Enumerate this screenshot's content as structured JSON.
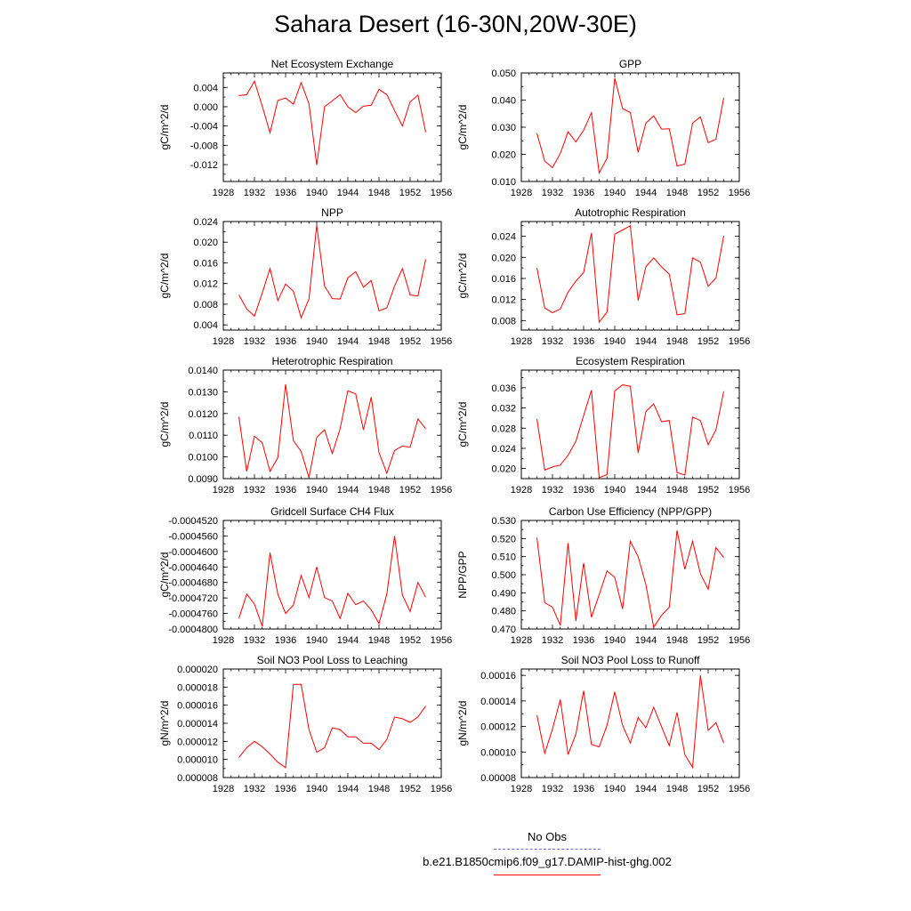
{
  "title": "Sahara Desert (16-30N,20W-30E)",
  "colors": {
    "series": "#ff0000",
    "obs": "#6a6adf",
    "axis": "#000000"
  },
  "legend": {
    "obs_label": "No Obs",
    "model_label": "b.e21.B1850cmip6.f09_g17.DAMIP-hist-ghg.002"
  },
  "chart_data": [
    {
      "type": "line",
      "title": "Net Ecosystem Exchange",
      "xlabel": "",
      "ylabel": "gC/m^2/d",
      "xlim": [
        1928,
        1956
      ],
      "ylim": [
        -0.0155,
        0.007
      ],
      "xticks": [
        "1928",
        "1932",
        "1936",
        "1940",
        "1944",
        "1948",
        "1952",
        "1956"
      ],
      "yticks": [
        "0.004",
        "0.000",
        "-0.004",
        "-0.008",
        "-0.012"
      ],
      "x": [
        1930,
        1931,
        1932,
        1933,
        1934,
        1935,
        1936,
        1937,
        1938,
        1939,
        1940,
        1941,
        1942,
        1943,
        1944,
        1945,
        1946,
        1947,
        1948,
        1949,
        1950,
        1951,
        1952,
        1953,
        1954
      ],
      "values": [
        0.0023,
        0.0025,
        0.0053,
        0.0001,
        -0.0054,
        0.0013,
        0.0018,
        0.0005,
        0.005,
        0.0006,
        -0.0121,
        0.0,
        0.0012,
        0.0025,
        0.0,
        -0.0012,
        0.0001,
        0.0003,
        0.0036,
        0.0025,
        -0.0008,
        -0.004,
        0.001,
        0.0024,
        -0.0053
      ]
    },
    {
      "type": "line",
      "title": "GPP",
      "xlabel": "",
      "ylabel": "gC/m^2/d",
      "xlim": [
        1928,
        1956
      ],
      "ylim": [
        0.01,
        0.05
      ],
      "xticks": [
        "1928",
        "1932",
        "1936",
        "1940",
        "1944",
        "1948",
        "1952",
        "1956"
      ],
      "yticks": [
        "0.050",
        "0.040",
        "0.030",
        "0.020",
        "0.010"
      ],
      "x": [
        1930,
        1931,
        1932,
        1933,
        1934,
        1935,
        1936,
        1937,
        1938,
        1939,
        1940,
        1941,
        1942,
        1943,
        1944,
        1945,
        1946,
        1947,
        1948,
        1949,
        1950,
        1951,
        1952,
        1953,
        1954
      ],
      "values": [
        0.0278,
        0.0175,
        0.0151,
        0.0203,
        0.0283,
        0.0246,
        0.0289,
        0.0353,
        0.0131,
        0.0186,
        0.0481,
        0.0369,
        0.0354,
        0.0207,
        0.0315,
        0.0342,
        0.0293,
        0.0294,
        0.0157,
        0.0164,
        0.0315,
        0.0338,
        0.0243,
        0.0256,
        0.0409
      ]
    },
    {
      "type": "line",
      "title": "NPP",
      "xlabel": "",
      "ylabel": "gC/m^2/d",
      "xlim": [
        1928,
        1956
      ],
      "ylim": [
        0.003,
        0.024
      ],
      "xticks": [
        "1928",
        "1932",
        "1936",
        "1940",
        "1944",
        "1948",
        "1952",
        "1956"
      ],
      "yticks": [
        "0.024",
        "0.020",
        "0.016",
        "0.012",
        "0.008",
        "0.004"
      ],
      "x": [
        1930,
        1931,
        1932,
        1933,
        1934,
        1935,
        1936,
        1937,
        1938,
        1939,
        1940,
        1941,
        1942,
        1943,
        1944,
        1945,
        1946,
        1947,
        1948,
        1949,
        1950,
        1951,
        1952,
        1953,
        1954
      ],
      "values": [
        0.0098,
        0.0071,
        0.0057,
        0.0102,
        0.0149,
        0.0087,
        0.0119,
        0.0105,
        0.0054,
        0.009,
        0.0233,
        0.0115,
        0.0091,
        0.009,
        0.0131,
        0.0143,
        0.0113,
        0.0126,
        0.0067,
        0.0073,
        0.0115,
        0.0149,
        0.0098,
        0.0096,
        0.0167
      ]
    },
    {
      "type": "line",
      "title": "Autotrophic Respiration",
      "xlabel": "",
      "ylabel": "gC/m^2/d",
      "xlim": [
        1928,
        1956
      ],
      "ylim": [
        0.0062,
        0.0268
      ],
      "xticks": [
        "1928",
        "1932",
        "1936",
        "1940",
        "1944",
        "1948",
        "1952",
        "1956"
      ],
      "yticks": [
        "0.024",
        "0.020",
        "0.016",
        "0.012",
        "0.008"
      ],
      "x": [
        1930,
        1931,
        1932,
        1933,
        1934,
        1935,
        1936,
        1937,
        1938,
        1939,
        1940,
        1941,
        1942,
        1943,
        1944,
        1945,
        1946,
        1947,
        1948,
        1949,
        1950,
        1951,
        1952,
        1953,
        1954
      ],
      "values": [
        0.018,
        0.0104,
        0.0095,
        0.0102,
        0.0134,
        0.0155,
        0.0171,
        0.0246,
        0.0077,
        0.0096,
        0.0244,
        0.0252,
        0.026,
        0.0118,
        0.0182,
        0.0199,
        0.0182,
        0.0168,
        0.0091,
        0.0093,
        0.0199,
        0.0191,
        0.0145,
        0.0161,
        0.0241
      ]
    },
    {
      "type": "line",
      "title": "Heterotrophic Respiration",
      "xlabel": "",
      "ylabel": "gC/m^2/d",
      "xlim": [
        1928,
        1956
      ],
      "ylim": [
        0.009,
        0.014
      ],
      "xticks": [
        "1928",
        "1932",
        "1936",
        "1940",
        "1944",
        "1948",
        "1952",
        "1956"
      ],
      "yticks": [
        "0.0140",
        "0.0130",
        "0.0120",
        "0.0110",
        "0.0100",
        "0.0090"
      ],
      "x": [
        1930,
        1931,
        1932,
        1933,
        1934,
        1935,
        1936,
        1937,
        1938,
        1939,
        1940,
        1941,
        1942,
        1943,
        1944,
        1945,
        1946,
        1947,
        1948,
        1949,
        1950,
        1951,
        1952,
        1953,
        1954
      ],
      "values": [
        0.01185,
        0.00932,
        0.01095,
        0.01065,
        0.00933,
        0.00997,
        0.01335,
        0.01075,
        0.01025,
        0.00905,
        0.0109,
        0.01125,
        0.01015,
        0.0113,
        0.01305,
        0.0129,
        0.01125,
        0.01275,
        0.0102,
        0.00925,
        0.0103,
        0.0105,
        0.01045,
        0.01175,
        0.0113
      ]
    },
    {
      "type": "line",
      "title": "Ecosystem Respiration",
      "xlabel": "",
      "ylabel": "gC/m^2/d",
      "xlim": [
        1928,
        1956
      ],
      "ylim": [
        0.018,
        0.0395
      ],
      "xticks": [
        "1928",
        "1932",
        "1936",
        "1940",
        "1944",
        "1948",
        "1952",
        "1956"
      ],
      "yticks": [
        "0.036",
        "0.032",
        "0.028",
        "0.024",
        "0.020"
      ],
      "x": [
        1930,
        1931,
        1932,
        1933,
        1934,
        1935,
        1936,
        1937,
        1938,
        1939,
        1940,
        1941,
        1942,
        1943,
        1944,
        1945,
        1946,
        1947,
        1948,
        1949,
        1950,
        1951,
        1952,
        1953,
        1954
      ],
      "values": [
        0.0298,
        0.0197,
        0.0203,
        0.0207,
        0.0226,
        0.0254,
        0.0305,
        0.0355,
        0.0182,
        0.0188,
        0.0354,
        0.0366,
        0.0363,
        0.0231,
        0.0313,
        0.0328,
        0.0293,
        0.0295,
        0.0192,
        0.0187,
        0.0302,
        0.0295,
        0.0247,
        0.0277,
        0.0353
      ]
    },
    {
      "type": "line",
      "title": "Gridcell Surface CH4 Flux",
      "xlabel": "",
      "ylabel": "gC/m^2/d",
      "xlim": [
        1928,
        1956
      ],
      "ylim": [
        -0.00048,
        -0.000452
      ],
      "xticks": [
        "1928",
        "1932",
        "1936",
        "1940",
        "1944",
        "1948",
        "1952",
        "1956"
      ],
      "yticks": [
        "-0.0004520",
        "-0.0004560",
        "-0.0004600",
        "-0.0004640",
        "-0.0004680",
        "-0.0004720",
        "-0.0004760",
        "-0.0004800"
      ],
      "x": [
        1930,
        1931,
        1932,
        1933,
        1934,
        1935,
        1936,
        1937,
        1938,
        1939,
        1940,
        1941,
        1942,
        1943,
        1944,
        1945,
        1946,
        1947,
        1948,
        1949,
        1950,
        1951,
        1952,
        1953,
        1954
      ],
      "values": [
        -0.0004773,
        -0.000471,
        -0.0004736,
        -0.0004793,
        -0.0004603,
        -0.000471,
        -0.000476,
        -0.0004738,
        -0.0004662,
        -0.0004719,
        -0.000464,
        -0.0004719,
        -0.0004728,
        -0.0004773,
        -0.0004708,
        -0.0004737,
        -0.0004728,
        -0.0004751,
        -0.0004786,
        -0.000471,
        -0.000456,
        -0.0004712,
        -0.0004755,
        -0.000468,
        -0.0004718
      ]
    },
    {
      "type": "line",
      "title": "Carbon Use Efficiency (NPP/GPP)",
      "xlabel": "",
      "ylabel": "NPP/GPP",
      "xlim": [
        1928,
        1956
      ],
      "ylim": [
        0.47,
        0.53
      ],
      "xticks": [
        "1928",
        "1932",
        "1936",
        "1940",
        "1944",
        "1948",
        "1952",
        "1956"
      ],
      "yticks": [
        "0.530",
        "0.520",
        "0.510",
        "0.500",
        "0.490",
        "0.480",
        "0.470"
      ],
      "x": [
        1930,
        1931,
        1932,
        1933,
        1934,
        1935,
        1936,
        1937,
        1938,
        1939,
        1940,
        1941,
        1942,
        1943,
        1944,
        1945,
        1946,
        1947,
        1948,
        1949,
        1950,
        1951,
        1952,
        1953,
        1954
      ],
      "values": [
        0.5205,
        0.4845,
        0.482,
        0.472,
        0.5175,
        0.4745,
        0.5065,
        0.4765,
        0.489,
        0.502,
        0.4985,
        0.481,
        0.5185,
        0.51,
        0.4945,
        0.471,
        0.4775,
        0.482,
        0.5245,
        0.503,
        0.5185,
        0.5005,
        0.492,
        0.515,
        0.5095
      ]
    },
    {
      "type": "line",
      "title": "Soil NO3 Pool Loss to Leaching",
      "xlabel": "",
      "ylabel": "gN/m^2/d",
      "xlim": [
        1928,
        1956
      ],
      "ylim": [
        8e-06,
        2e-05
      ],
      "xticks": [
        "1928",
        "1932",
        "1936",
        "1940",
        "1944",
        "1948",
        "1952",
        "1956"
      ],
      "yticks": [
        "0.000020",
        "0.000018",
        "0.000016",
        "0.000014",
        "0.000012",
        "0.000010",
        "0.000008"
      ],
      "x": [
        1930,
        1931,
        1932,
        1933,
        1934,
        1935,
        1936,
        1937,
        1938,
        1939,
        1940,
        1941,
        1942,
        1943,
        1944,
        1945,
        1946,
        1947,
        1948,
        1949,
        1950,
        1951,
        1952,
        1953,
        1954
      ],
      "values": [
        1.02e-05,
        1.13e-05,
        1.2e-05,
        1.14e-05,
        1.06e-05,
        9.7e-06,
        9.1e-06,
        1.83e-05,
        1.83e-05,
        1.33e-05,
        1.08e-05,
        1.13e-05,
        1.35e-05,
        1.33e-05,
        1.25e-05,
        1.25e-05,
        1.18e-05,
        1.18e-05,
        1.11e-05,
        1.22e-05,
        1.47e-05,
        1.45e-05,
        1.41e-05,
        1.47e-05,
        1.59e-05
      ]
    },
    {
      "type": "line",
      "title": "Soil NO3 Pool Loss to Runoff",
      "xlabel": "",
      "ylabel": "gN/m^2/d",
      "xlim": [
        1928,
        1956
      ],
      "ylim": [
        8e-05,
        0.000165
      ],
      "xticks": [
        "1928",
        "1932",
        "1936",
        "1940",
        "1944",
        "1948",
        "1952",
        "1956"
      ],
      "yticks": [
        "0.00016",
        "0.00014",
        "0.00012",
        "0.00010",
        "0.00008"
      ],
      "x": [
        1930,
        1931,
        1932,
        1933,
        1934,
        1935,
        1936,
        1937,
        1938,
        1939,
        1940,
        1941,
        1942,
        1943,
        1944,
        1945,
        1946,
        1947,
        1948,
        1949,
        1950,
        1951,
        1952,
        1953,
        1954
      ],
      "values": [
        0.000129,
        9.9e-05,
        0.000118,
        0.000141,
        9.8e-05,
        0.000114,
        0.000148,
        0.000106,
        0.000104,
        0.000121,
        0.000147,
        0.000121,
        0.000107,
        0.000127,
        0.000119,
        0.000135,
        0.00012,
        0.000105,
        0.000131,
        9.8e-05,
        8.8e-05,
        0.00016,
        0.000117,
        0.000123,
        0.000107
      ]
    }
  ]
}
